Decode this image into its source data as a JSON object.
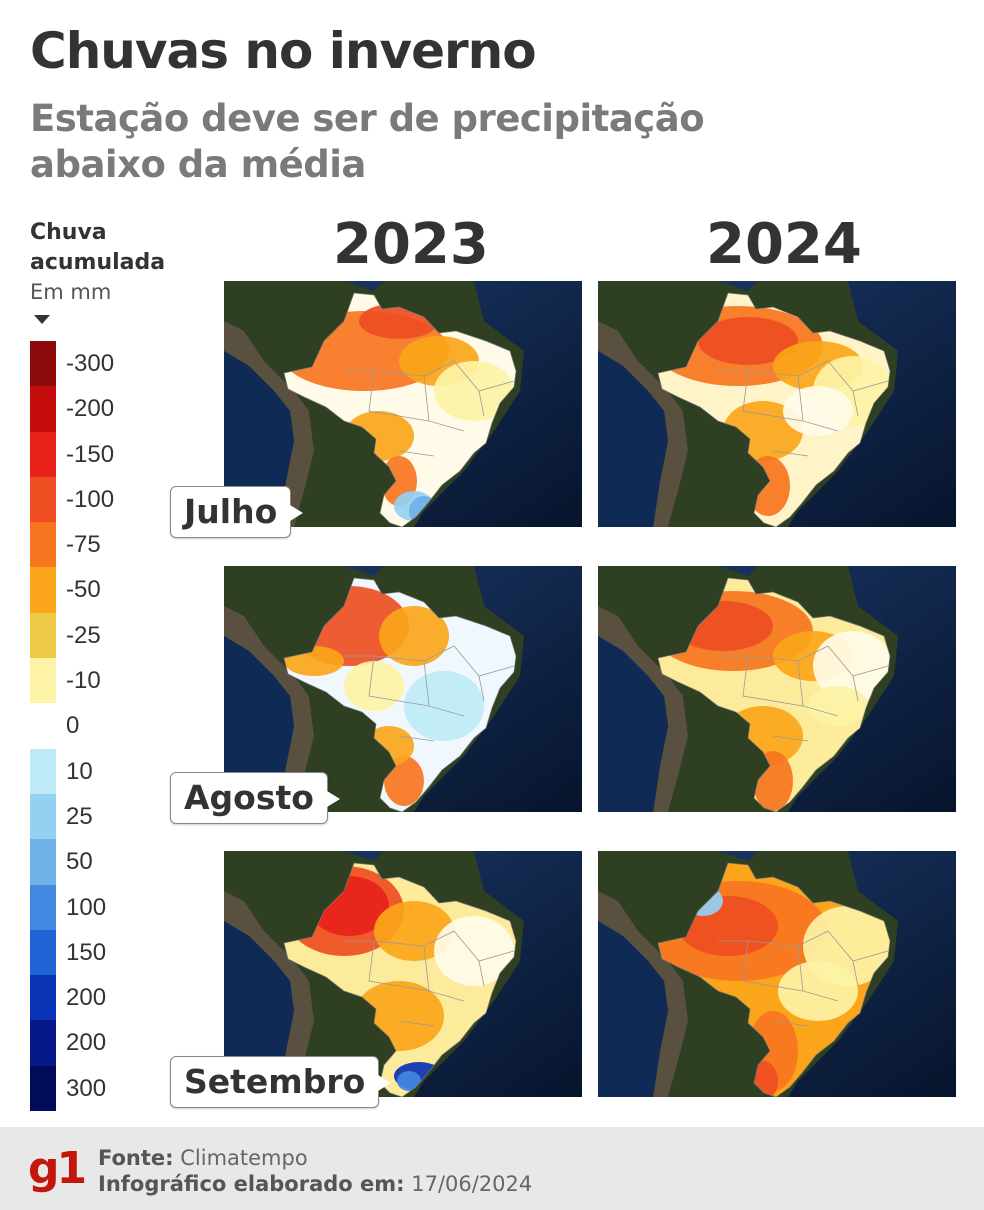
{
  "title": "Chuvas no inverno",
  "subtitle": "Estação deve ser de precipitação abaixo da média",
  "legend": {
    "title_line1": "Chuva",
    "title_line2": "acumulada",
    "unit": "Em mm",
    "items": [
      {
        "label": "-300",
        "color": "#8c0a0a"
      },
      {
        "label": "-200",
        "color": "#c40c0c"
      },
      {
        "label": "-150",
        "color": "#e8221a"
      },
      {
        "label": "-100",
        "color": "#ee4e22"
      },
      {
        "label": "-75",
        "color": "#f77520"
      },
      {
        "label": "-50",
        "color": "#fba51a"
      },
      {
        "label": "-25",
        "color": "#ecc946"
      },
      {
        "label": "-10",
        "color": "#fdf3a6"
      },
      {
        "label": "0",
        "color": "#ffffff"
      },
      {
        "label": "10",
        "color": "#bfeaf8"
      },
      {
        "label": "25",
        "color": "#93d1f3"
      },
      {
        "label": "50",
        "color": "#6fb1e8"
      },
      {
        "label": "100",
        "color": "#4287e0"
      },
      {
        "label": "150",
        "color": "#1f63d4"
      },
      {
        "label": "200",
        "color": "#0a32b5"
      },
      {
        "label": "200",
        "color": "#05188a"
      },
      {
        "label": "300",
        "color": "#020b5a"
      }
    ]
  },
  "years": [
    "2023",
    "2024"
  ],
  "months": [
    "Julho",
    "Agosto",
    "Setembro"
  ],
  "footer": {
    "logo": "g1",
    "source_label": "Fonte:",
    "source_value": "Climatempo",
    "date_label": "Infográfico elaborado em:",
    "date_value": "17/06/2024"
  }
}
